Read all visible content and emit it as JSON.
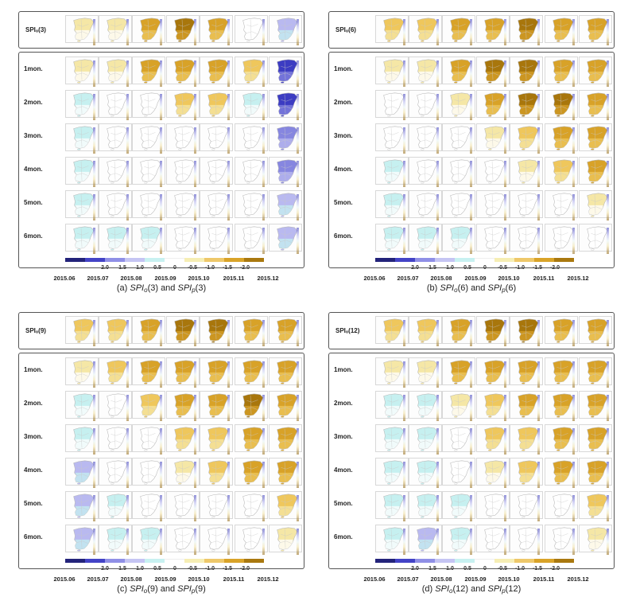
{
  "panels": [
    {
      "id": "a",
      "top_label": "SPIₒ(3)",
      "caption": "(a) SPIₒ(3) and SPIₚ(3)",
      "caption_parts": [
        "(a) ",
        "SPI",
        "o",
        "(3) and ",
        "SPI",
        "p",
        "(3)"
      ],
      "observed": [
        1,
        1,
        3,
        4,
        3,
        0,
        -2
      ],
      "forecast": [
        [
          1,
          1,
          3,
          3,
          3,
          2,
          -4
        ],
        [
          -1,
          0,
          0,
          2,
          2,
          -1,
          -4
        ],
        [
          -1,
          0,
          0,
          0,
          0,
          0,
          -3
        ],
        [
          -1,
          0,
          0,
          0,
          0,
          0,
          -3
        ],
        [
          -1,
          0,
          0,
          0,
          0,
          0,
          -2
        ],
        [
          -1,
          -1,
          -1,
          0,
          0,
          0,
          -2
        ]
      ]
    },
    {
      "id": "b",
      "top_label": "SPIₒ(6)",
      "caption": "(b) SPIₒ(6) and SPIₚ(6)",
      "caption_parts": [
        "(b) ",
        "SPI",
        "o",
        "(6) and ",
        "SPI",
        "p",
        "(6)"
      ],
      "observed": [
        2,
        2,
        3,
        3,
        4,
        3,
        3
      ],
      "forecast": [
        [
          1,
          1,
          3,
          4,
          4,
          3,
          3
        ],
        [
          0,
          0,
          1,
          3,
          4,
          4,
          3
        ],
        [
          0,
          0,
          0,
          1,
          2,
          3,
          3
        ],
        [
          -1,
          0,
          0,
          0,
          1,
          2,
          3
        ],
        [
          -1,
          0,
          0,
          0,
          0,
          0,
          1
        ],
        [
          -1,
          -1,
          -1,
          0,
          0,
          0,
          0
        ]
      ]
    },
    {
      "id": "c",
      "top_label": "SPIₒ(9)",
      "caption": "(c) SPIₒ(9) and SPIₚ(9)",
      "caption_parts": [
        "(c) ",
        "SPI",
        "o",
        "(9) and ",
        "SPI",
        "p",
        "(9)"
      ],
      "observed": [
        2,
        2,
        3,
        4,
        4,
        3,
        3
      ],
      "forecast": [
        [
          1,
          2,
          3,
          3,
          3,
          3,
          3
        ],
        [
          -1,
          0,
          2,
          3,
          3,
          4,
          3
        ],
        [
          -1,
          0,
          0,
          2,
          2,
          3,
          3
        ],
        [
          -2,
          0,
          0,
          1,
          2,
          3,
          3
        ],
        [
          -2,
          -1,
          0,
          0,
          0,
          0,
          2
        ],
        [
          -2,
          -1,
          -1,
          0,
          0,
          0,
          1
        ]
      ]
    },
    {
      "id": "d",
      "top_label": "SPIₒ(12)",
      "caption": "(d) SPIₒ(12) and SPIₚ(12)",
      "caption_parts": [
        "(d) ",
        "SPI",
        "o",
        "(12) and ",
        "SPI",
        "p",
        "(12)"
      ],
      "observed": [
        2,
        2,
        3,
        4,
        4,
        3,
        3
      ],
      "forecast": [
        [
          1,
          1,
          3,
          3,
          3,
          3,
          3
        ],
        [
          -1,
          -1,
          1,
          2,
          3,
          3,
          3
        ],
        [
          -1,
          -1,
          0,
          2,
          2,
          3,
          3
        ],
        [
          -1,
          -1,
          0,
          1,
          2,
          3,
          3
        ],
        [
          -1,
          -1,
          -1,
          0,
          0,
          0,
          2
        ],
        [
          -1,
          -2,
          -1,
          0,
          0,
          0,
          1
        ]
      ]
    }
  ],
  "row_labels": [
    "1mon.",
    "2mon.",
    "3mon.",
    "4mon.",
    "5mon.",
    "6mon."
  ],
  "dates": [
    "2015.06",
    "2015.07",
    "2015.08",
    "2015.09",
    "2015.10",
    "2015.11",
    "2015.12"
  ],
  "colorbar": {
    "ticks": [
      "2.0",
      "1.5",
      "1.0",
      "0.5",
      "0",
      "-0.5",
      "-1.0",
      "-1.5",
      "-2.0"
    ],
    "colors": [
      "#23237a",
      "#4343c6",
      "#8f8fe6",
      "#c5c5f3",
      "#c8f1f1",
      "#ffffff",
      "#f6eeb4",
      "#eec86a",
      "#d9a328",
      "#a9780f"
    ]
  },
  "level_colors": {
    "-4": "#3c3cc2",
    "-3": "#8686e0",
    "-2": "#b9b9f0",
    "-1": "#c6f0f0",
    "0": "#ffffff",
    "1": "#f5e7a6",
    "2": "#efc75c",
    "3": "#d8a228",
    "4": "#a8760c"
  }
}
